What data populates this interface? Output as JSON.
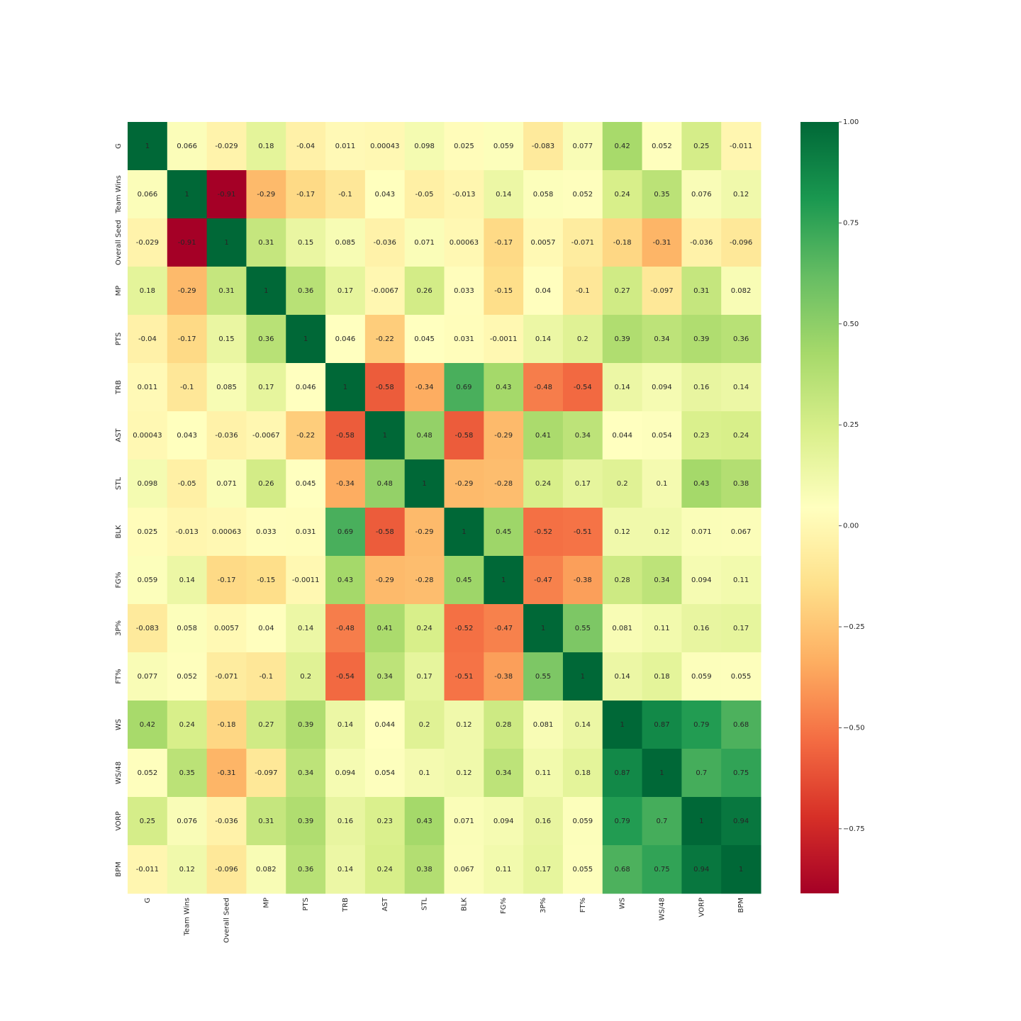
{
  "chart_data": {
    "type": "heatmap",
    "colormap": "RdYlGn",
    "categories": [
      "G",
      "Team Wins",
      "Overall Seed",
      "MP",
      "PTS",
      "TRB",
      "AST",
      "STL",
      "BLK",
      "FG%",
      "3P%",
      "FT%",
      "WS",
      "WS/48",
      "VORP",
      "BPM"
    ],
    "values": [
      [
        1,
        0.066,
        -0.029,
        0.18,
        -0.04,
        0.011,
        0.00043,
        0.098,
        0.025,
        0.059,
        -0.083,
        0.077,
        0.42,
        0.052,
        0.25,
        -0.011
      ],
      [
        0.066,
        1,
        -0.91,
        -0.29,
        -0.17,
        -0.1,
        0.043,
        -0.05,
        -0.013,
        0.14,
        0.058,
        0.052,
        0.24,
        0.35,
        0.076,
        0.12
      ],
      [
        -0.029,
        -0.91,
        1,
        0.31,
        0.15,
        0.085,
        -0.036,
        0.071,
        0.00063,
        -0.17,
        0.0057,
        -0.071,
        -0.18,
        -0.31,
        -0.036,
        -0.096
      ],
      [
        0.18,
        -0.29,
        0.31,
        1,
        0.36,
        0.17,
        -0.0067,
        0.26,
        0.033,
        -0.15,
        0.04,
        -0.1,
        0.27,
        -0.097,
        0.31,
        0.082
      ],
      [
        -0.04,
        -0.17,
        0.15,
        0.36,
        1,
        0.046,
        -0.22,
        0.045,
        0.031,
        -0.0011,
        0.14,
        0.2,
        0.39,
        0.34,
        0.39,
        0.36
      ],
      [
        0.011,
        -0.1,
        0.085,
        0.17,
        0.046,
        1,
        -0.58,
        -0.34,
        0.69,
        0.43,
        -0.48,
        -0.54,
        0.14,
        0.094,
        0.16,
        0.14
      ],
      [
        0.00043,
        0.043,
        -0.036,
        -0.0067,
        -0.22,
        -0.58,
        1,
        0.48,
        -0.58,
        -0.29,
        0.41,
        0.34,
        0.044,
        0.054,
        0.23,
        0.24
      ],
      [
        0.098,
        -0.05,
        0.071,
        0.26,
        0.045,
        -0.34,
        0.48,
        1,
        -0.29,
        -0.28,
        0.24,
        0.17,
        0.2,
        0.1,
        0.43,
        0.38
      ],
      [
        0.025,
        -0.013,
        0.00063,
        0.033,
        0.031,
        0.69,
        -0.58,
        -0.29,
        1,
        0.45,
        -0.52,
        -0.51,
        0.12,
        0.12,
        0.071,
        0.067
      ],
      [
        0.059,
        0.14,
        -0.17,
        -0.15,
        -0.0011,
        0.43,
        -0.29,
        -0.28,
        0.45,
        1,
        -0.47,
        -0.38,
        0.28,
        0.34,
        0.094,
        0.11
      ],
      [
        -0.083,
        0.058,
        0.0057,
        0.04,
        0.14,
        -0.48,
        0.41,
        0.24,
        -0.52,
        -0.47,
        1,
        0.55,
        0.081,
        0.11,
        0.16,
        0.17
      ],
      [
        0.077,
        0.052,
        -0.071,
        -0.1,
        0.2,
        -0.54,
        0.34,
        0.17,
        -0.51,
        -0.38,
        0.55,
        1,
        0.14,
        0.18,
        0.059,
        0.055
      ],
      [
        0.42,
        0.24,
        -0.18,
        0.27,
        0.39,
        0.14,
        0.044,
        0.2,
        0.12,
        0.28,
        0.081,
        0.14,
        1,
        0.87,
        0.79,
        0.68
      ],
      [
        0.052,
        0.35,
        -0.31,
        -0.097,
        0.34,
        0.094,
        0.054,
        0.1,
        0.12,
        0.34,
        0.11,
        0.18,
        0.87,
        1,
        0.7,
        0.75
      ],
      [
        0.25,
        0.076,
        -0.036,
        0.31,
        0.39,
        0.16,
        0.23,
        0.43,
        0.071,
        0.094,
        0.16,
        0.059,
        0.79,
        0.7,
        1,
        0.94
      ],
      [
        -0.011,
        0.12,
        -0.096,
        0.082,
        0.36,
        0.14,
        0.24,
        0.38,
        0.067,
        0.11,
        0.17,
        0.055,
        0.68,
        0.75,
        0.94,
        1
      ]
    ],
    "zlim": [
      -0.91,
      1
    ],
    "zticks": [
      {
        "value": 1,
        "label": "1.00"
      },
      {
        "value": 0.75,
        "label": "0.75"
      },
      {
        "value": 0.5,
        "label": "0.50"
      },
      {
        "value": 0.25,
        "label": "0.25"
      },
      {
        "value": 0,
        "label": "0.00"
      },
      {
        "value": -0.25,
        "label": "−0.25"
      },
      {
        "value": -0.5,
        "label": "−0.50"
      },
      {
        "value": -0.75,
        "label": "−0.75"
      }
    ]
  }
}
